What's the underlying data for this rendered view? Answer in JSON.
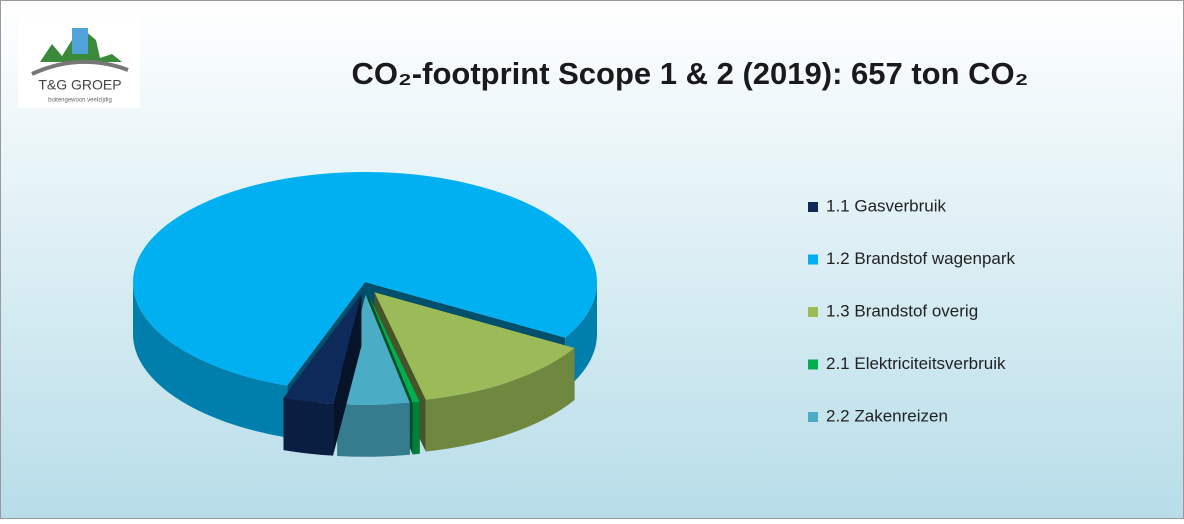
{
  "logo": {
    "text": "T&G GROEP",
    "tagline": "buitengewoon veelzijdig"
  },
  "chart_data": {
    "type": "pie3d",
    "title": "CO₂-footprint Scope 1 & 2 (2019): 657 ton CO₂",
    "categories": [
      "1.1 Gasverbruik",
      "1.2 Brandstof wagenpark",
      "1.3 Brandstof overig",
      "2.1 Elektriciteitsverbruik",
      "2.2 Zakenreizen"
    ],
    "values": [
      3.5,
      78,
      13,
      0.5,
      5
    ],
    "colors": [
      "#0d2a5a",
      "#00b0f0",
      "#9bbb59",
      "#00b050",
      "#4bacc6"
    ],
    "legend": "right"
  }
}
